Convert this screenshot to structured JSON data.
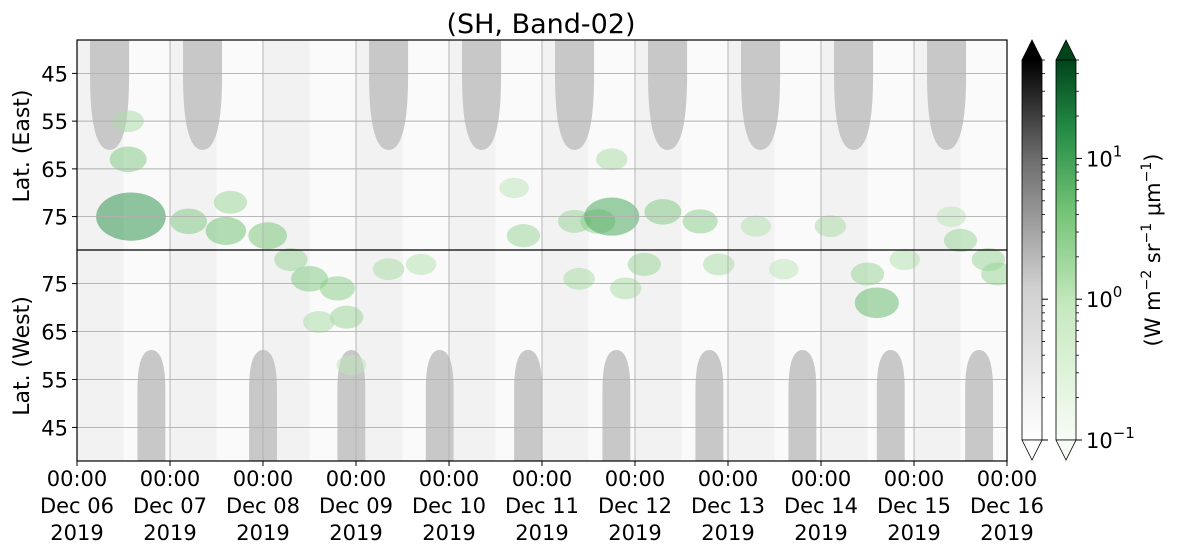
{
  "chart_data": {
    "type": "heatmap",
    "title": "(SH, Band-02)",
    "x_ticks": {
      "time": [
        "00:00",
        "00:00",
        "00:00",
        "00:00",
        "00:00",
        "00:00",
        "00:00",
        "00:00",
        "00:00",
        "00:00",
        "00:00"
      ],
      "date": [
        "Dec 06",
        "Dec 07",
        "Dec 08",
        "Dec 09",
        "Dec 10",
        "Dec 11",
        "Dec 12",
        "Dec 13",
        "Dec 14",
        "Dec 15",
        "Dec 16"
      ],
      "year": [
        "2019",
        "2019",
        "2019",
        "2019",
        "2019",
        "2019",
        "2019",
        "2019",
        "2019",
        "2019",
        "2019"
      ]
    },
    "x_range": [
      "2019-12-06 00:00",
      "2019-12-16 00:00"
    ],
    "y_panels": [
      {
        "label": "Lat. (East)",
        "ticks": [
          "45",
          "55",
          "65",
          "75"
        ],
        "range": [
          38,
          82
        ]
      },
      {
        "label": "Lat. (West)",
        "ticks": [
          "75",
          "65",
          "55",
          "45"
        ],
        "range": [
          82,
          38
        ]
      }
    ],
    "divider_latitude": 82,
    "colorbar": {
      "label": "(W m$^{-2}$ sr$^{-1}$ $\\mu$m$^{-1}$)",
      "label_parts": [
        "(W m",
        "−2",
        " sr",
        "−1",
        " μm",
        "−1",
        ")"
      ],
      "scale": "log",
      "range": [
        0.1,
        50
      ],
      "ticks": [
        {
          "value": 0.1,
          "base": "10",
          "exp": "−1"
        },
        {
          "value": 1,
          "base": "10",
          "exp": "0"
        },
        {
          "value": 10,
          "base": "10",
          "exp": "1"
        }
      ],
      "colormaps": [
        "Greys",
        "Greens"
      ],
      "extend": "both"
    },
    "grid": true,
    "no_data_color": "#c8c8c8",
    "east_nodata_days": [
      0.35,
      1.35,
      3.35,
      4.35,
      5.35,
      6.35,
      7.35,
      8.35,
      9.35
    ],
    "west_nodata_days": [
      0.8,
      2.0,
      2.95,
      3.9,
      4.85,
      5.8,
      6.8,
      7.8,
      8.75,
      9.7
    ],
    "aurora_events": [
      {
        "day": 0.55,
        "lat": 63,
        "half": "east",
        "intensity": 3.0
      },
      {
        "day": 0.55,
        "lat": 55,
        "half": "east",
        "intensity": 1.5
      },
      {
        "day": 0.58,
        "lat": 75,
        "half": "east",
        "intensity": 12.0
      },
      {
        "day": 1.2,
        "lat": 76,
        "half": "east",
        "intensity": 3.0
      },
      {
        "day": 1.6,
        "lat": 78,
        "half": "east",
        "intensity": 4.0
      },
      {
        "day": 1.65,
        "lat": 72,
        "half": "east",
        "intensity": 2.0
      },
      {
        "day": 2.05,
        "lat": 79,
        "half": "east",
        "intensity": 3.5
      },
      {
        "day": 2.3,
        "lat": 80,
        "half": "west",
        "intensity": 2.0
      },
      {
        "day": 2.5,
        "lat": 76,
        "half": "west",
        "intensity": 3.0
      },
      {
        "day": 2.8,
        "lat": 74,
        "half": "west",
        "intensity": 2.5
      },
      {
        "day": 2.9,
        "lat": 68,
        "half": "west",
        "intensity": 2.0
      },
      {
        "day": 2.6,
        "lat": 67,
        "half": "west",
        "intensity": 1.5
      },
      {
        "day": 2.95,
        "lat": 58,
        "half": "west",
        "intensity": 1.0
      },
      {
        "day": 3.35,
        "lat": 78,
        "half": "west",
        "intensity": 1.5
      },
      {
        "day": 3.7,
        "lat": 79,
        "half": "west",
        "intensity": 1.2
      },
      {
        "day": 4.7,
        "lat": 69,
        "half": "east",
        "intensity": 1.0
      },
      {
        "day": 4.8,
        "lat": 79,
        "half": "east",
        "intensity": 2.0
      },
      {
        "day": 5.35,
        "lat": 76,
        "half": "east",
        "intensity": 2.0
      },
      {
        "day": 5.6,
        "lat": 76,
        "half": "east",
        "intensity": 2.5
      },
      {
        "day": 5.75,
        "lat": 75,
        "half": "east",
        "intensity": 8.0
      },
      {
        "day": 5.75,
        "lat": 63,
        "half": "east",
        "intensity": 1.5
      },
      {
        "day": 5.4,
        "lat": 76,
        "half": "west",
        "intensity": 1.5
      },
      {
        "day": 5.9,
        "lat": 74,
        "half": "west",
        "intensity": 1.5
      },
      {
        "day": 6.1,
        "lat": 79,
        "half": "west",
        "intensity": 2.0
      },
      {
        "day": 6.3,
        "lat": 74,
        "half": "east",
        "intensity": 3.0
      },
      {
        "day": 6.7,
        "lat": 76,
        "half": "east",
        "intensity": 2.5
      },
      {
        "day": 6.9,
        "lat": 79,
        "half": "west",
        "intensity": 1.5
      },
      {
        "day": 7.3,
        "lat": 77,
        "half": "east",
        "intensity": 1.2
      },
      {
        "day": 7.6,
        "lat": 78,
        "half": "west",
        "intensity": 1.0
      },
      {
        "day": 8.1,
        "lat": 77,
        "half": "east",
        "intensity": 1.5
      },
      {
        "day": 8.5,
        "lat": 77,
        "half": "west",
        "intensity": 2.0
      },
      {
        "day": 8.6,
        "lat": 71,
        "half": "west",
        "intensity": 5.0
      },
      {
        "day": 8.9,
        "lat": 80,
        "half": "west",
        "intensity": 1.2
      },
      {
        "day": 9.4,
        "lat": 75,
        "half": "east",
        "intensity": 1.0
      },
      {
        "day": 9.5,
        "lat": 80,
        "half": "east",
        "intensity": 2.0
      },
      {
        "day": 9.8,
        "lat": 80,
        "half": "west",
        "intensity": 2.0
      },
      {
        "day": 9.9,
        "lat": 77,
        "half": "west",
        "intensity": 2.0
      }
    ]
  }
}
